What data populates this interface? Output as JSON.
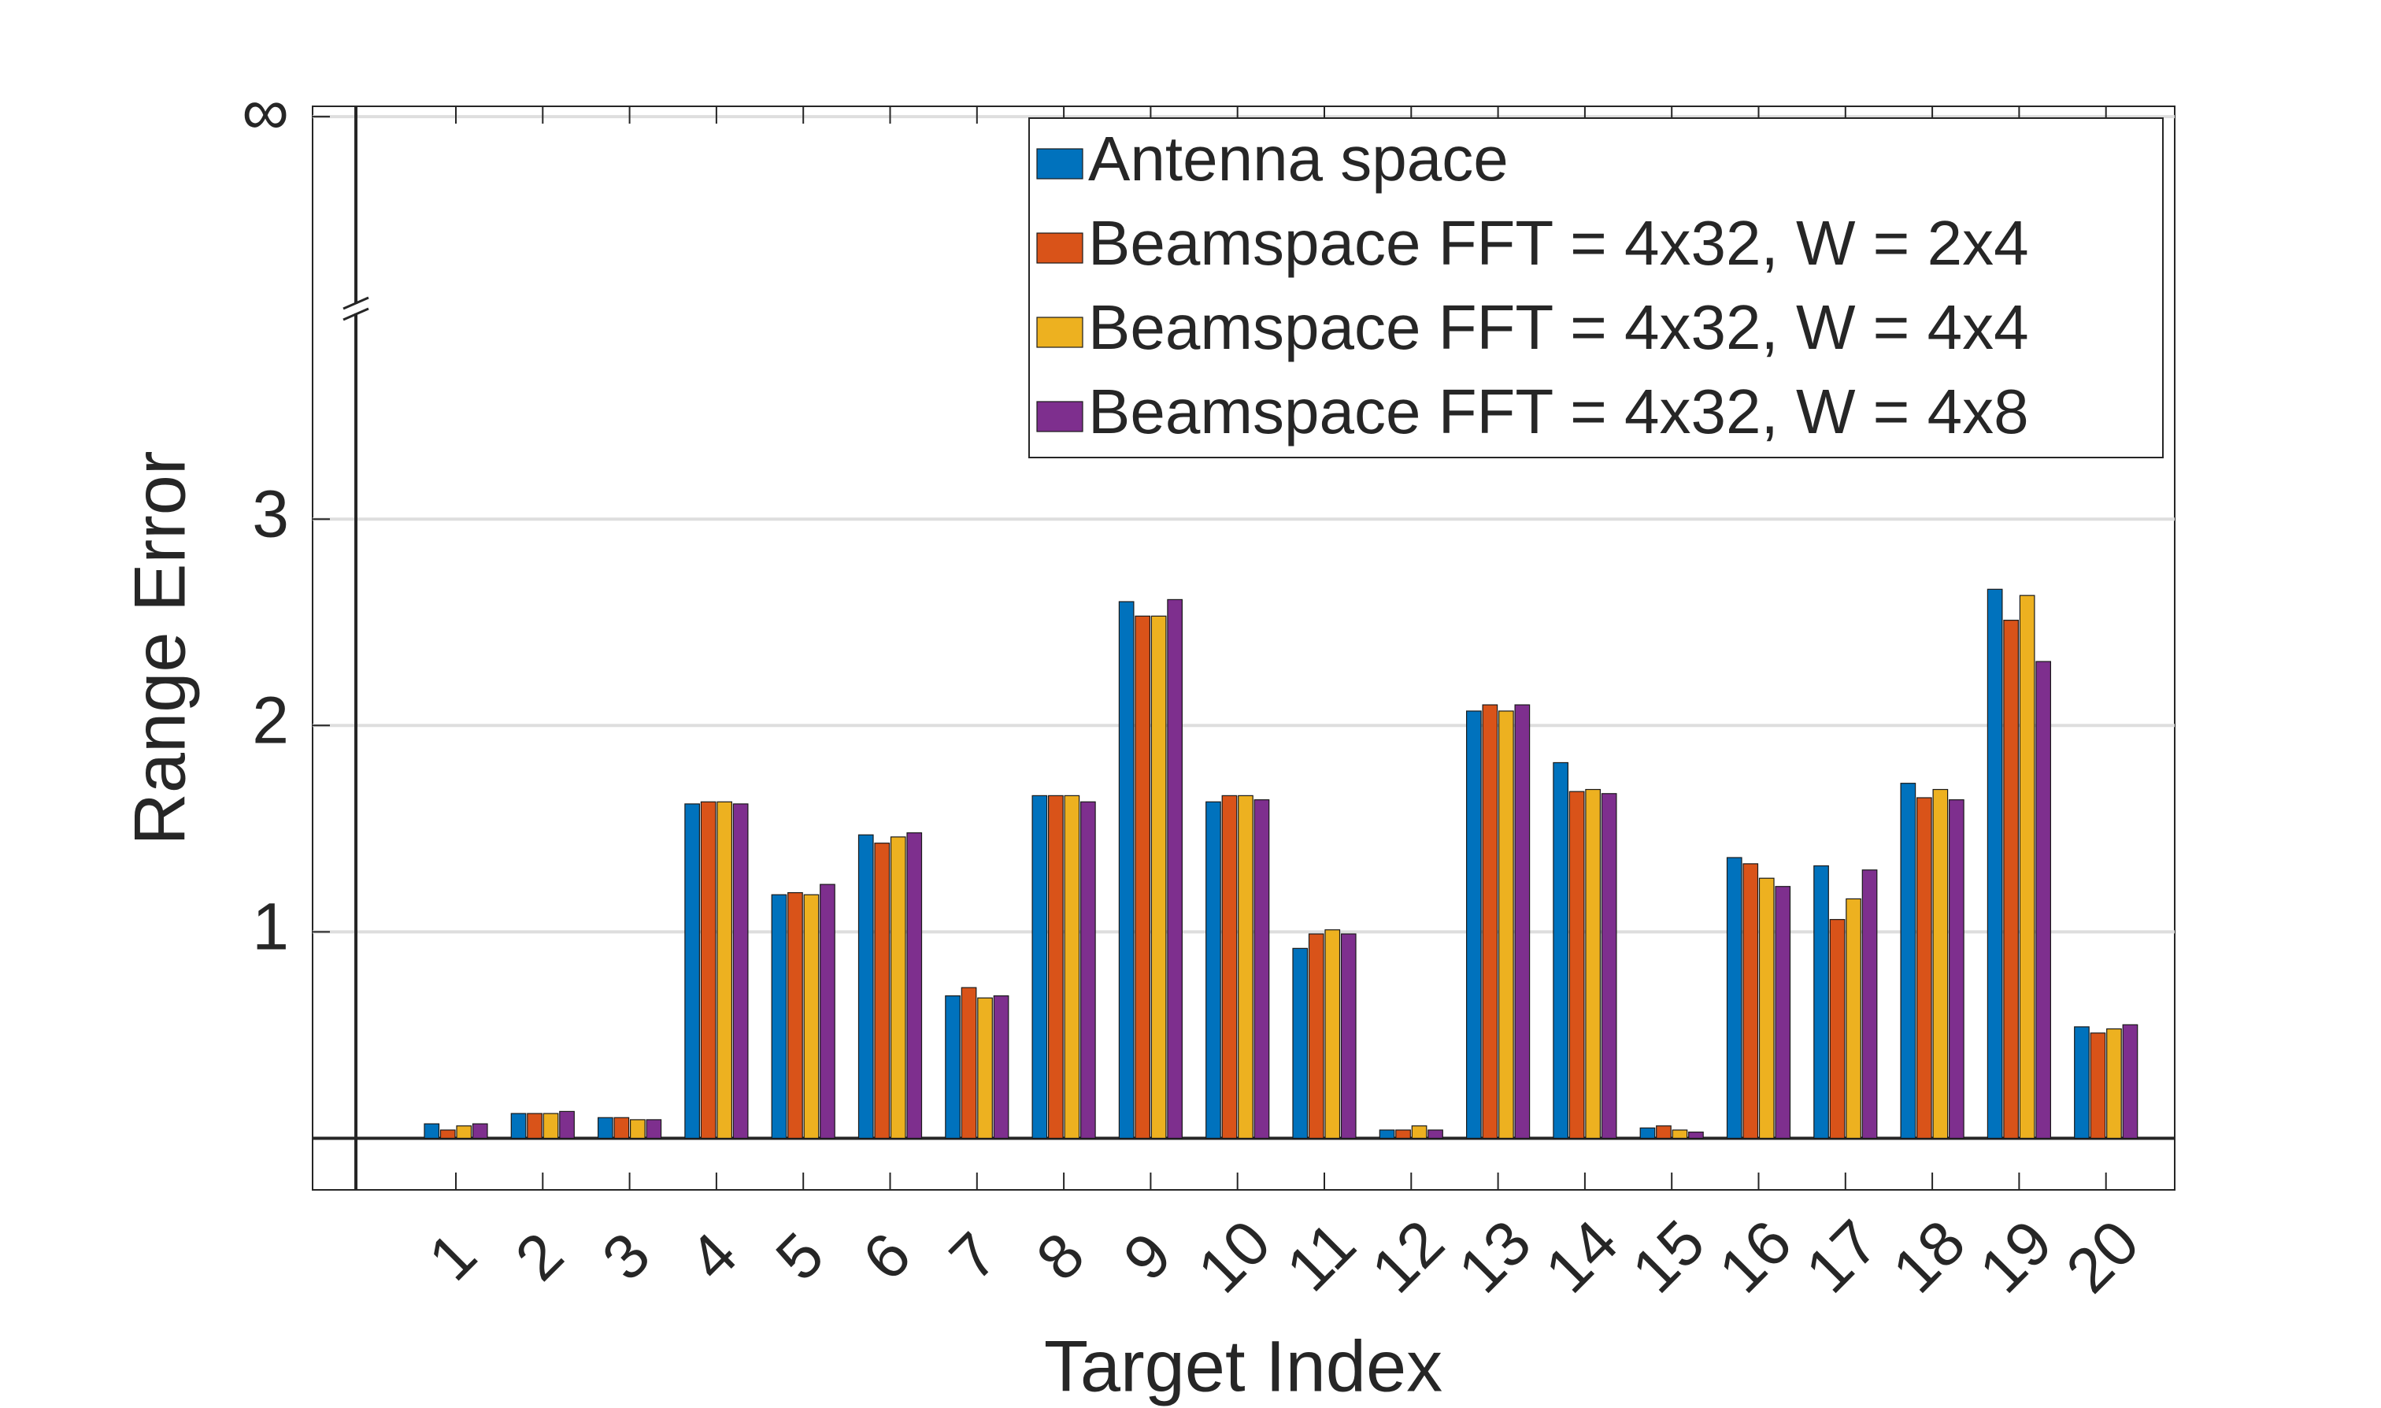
{
  "chart_data": {
    "type": "bar",
    "x_label": "Target Index",
    "y_label": "Range Error",
    "categories": [
      "1",
      "2",
      "3",
      "4",
      "5",
      "6",
      "7",
      "8",
      "9",
      "10",
      "11",
      "12",
      "13",
      "14",
      "15",
      "16",
      "17",
      "18",
      "19",
      "20"
    ],
    "series": [
      {
        "name": "Antenna space",
        "color": "#0072BD",
        "values": [
          0.07,
          0.12,
          0.1,
          1.62,
          1.18,
          1.47,
          0.69,
          1.66,
          2.6,
          1.63,
          0.92,
          0.04,
          2.07,
          1.82,
          0.05,
          1.36,
          1.32,
          1.72,
          2.66,
          0.54
        ]
      },
      {
        "name": "Beamspace FFT = 4x32, W = 2x4",
        "color": "#D95319",
        "values": [
          0.04,
          0.12,
          0.1,
          1.63,
          1.19,
          1.43,
          0.73,
          1.66,
          2.53,
          1.66,
          0.99,
          0.04,
          2.1,
          1.68,
          0.06,
          1.33,
          1.06,
          1.65,
          2.51,
          0.51
        ]
      },
      {
        "name": "Beamspace FFT = 4x32, W = 4x4",
        "color": "#EDB120",
        "values": [
          0.06,
          0.12,
          0.09,
          1.63,
          1.18,
          1.46,
          0.68,
          1.66,
          2.53,
          1.66,
          1.01,
          0.06,
          2.07,
          1.69,
          0.04,
          1.26,
          1.16,
          1.69,
          2.63,
          0.53
        ]
      },
      {
        "name": "Beamspace FFT = 4x32, W = 4x8",
        "color": "#7E2F8E",
        "values": [
          0.07,
          0.13,
          0.09,
          1.62,
          1.23,
          1.48,
          0.69,
          1.63,
          2.61,
          1.64,
          0.99,
          0.04,
          2.1,
          1.67,
          0.03,
          1.22,
          1.3,
          1.64,
          2.31,
          0.55
        ]
      }
    ],
    "ylim": [
      -0.25,
      5
    ],
    "yticks": [
      1,
      2,
      3,
      {
        "value": 4.95,
        "label": "∞"
      }
    ],
    "grid": true,
    "legend": "top-right"
  }
}
